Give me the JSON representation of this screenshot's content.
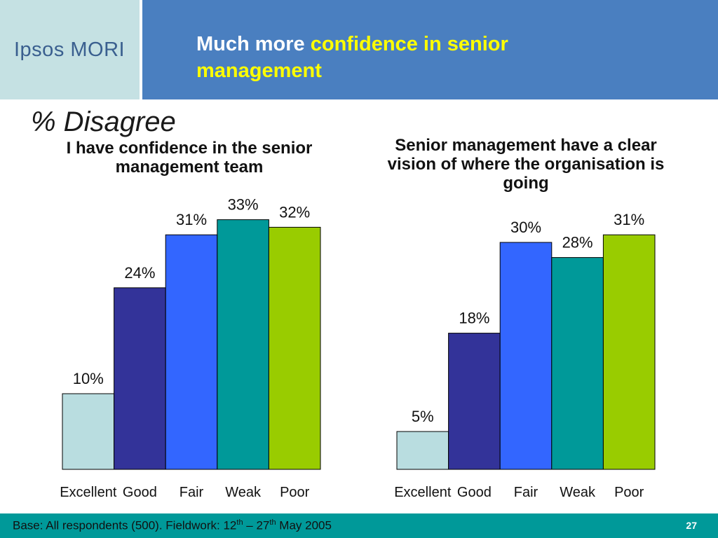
{
  "header": {
    "logo": "Ipsos MORI",
    "title_plain": "Much more ",
    "title_highlight": "confidence in senior management"
  },
  "subtitle": "% Disagree",
  "colors": {
    "header_bg": "#4a7fc0",
    "logo_bg": "#c5e1e3",
    "title_highlight": "#ffff00",
    "footer_bg": "#009999",
    "bar_excellent": "#b9dde0",
    "bar_good": "#333399",
    "bar_fair": "#3366ff",
    "bar_weak": "#009999",
    "bar_poor": "#99cc00"
  },
  "chart_data": [
    {
      "type": "bar",
      "title": "I have confidence in the senior management team",
      "categories": [
        "Excellent",
        "Good",
        "Fair",
        "Weak",
        "Poor"
      ],
      "values": [
        10,
        24,
        31,
        33,
        32
      ],
      "labels": [
        "10%",
        "24%",
        "31%",
        "33%",
        "32%"
      ],
      "unit": "%",
      "ylim": [
        0,
        33
      ],
      "grid": false,
      "legend": "none"
    },
    {
      "type": "bar",
      "title": "Senior management have a clear vision of where the organisation is going",
      "categories": [
        "Excellent",
        "Good",
        "Fair",
        "Weak",
        "Poor"
      ],
      "values": [
        5,
        18,
        30,
        28,
        31
      ],
      "labels": [
        "5%",
        "18%",
        "30%",
        "28%",
        "31%"
      ],
      "unit": "%",
      "ylim": [
        0,
        33
      ],
      "grid": false,
      "legend": "none"
    }
  ],
  "footer": {
    "base_text": "Base: All respondents (500). Fieldwork: 12",
    "sup1": "th",
    "dash": " – 27",
    "sup2": "th",
    "tail": " May 2005",
    "page_number": "27"
  }
}
